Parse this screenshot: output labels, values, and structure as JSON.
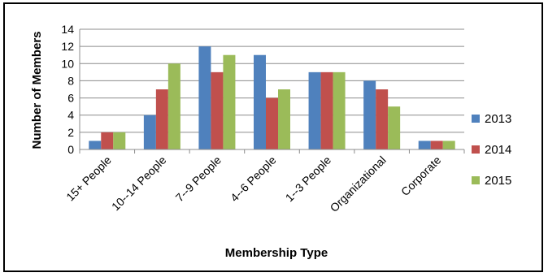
{
  "chart_data": {
    "type": "bar",
    "title": "",
    "xlabel": "Membership Type",
    "ylabel": "Number of Members",
    "ylim": [
      0,
      14
    ],
    "yticks": [
      0,
      2,
      4,
      6,
      8,
      10,
      12,
      14
    ],
    "grid": true,
    "legend_position": "right",
    "categories": [
      "15+ People",
      "10--14 People",
      "7--9 People",
      "4--6 People",
      "1--3 People",
      "Organizational",
      "Corporate"
    ],
    "series": [
      {
        "name": "2013",
        "color": "#4f81bd",
        "values": [
          1,
          4,
          12,
          11,
          9,
          8,
          1
        ]
      },
      {
        "name": "2014",
        "color": "#c0504d",
        "values": [
          2,
          7,
          9,
          6,
          9,
          7,
          1
        ]
      },
      {
        "name": "2015",
        "color": "#9bbb59",
        "values": [
          2,
          10,
          11,
          7,
          9,
          5,
          1
        ]
      }
    ]
  }
}
